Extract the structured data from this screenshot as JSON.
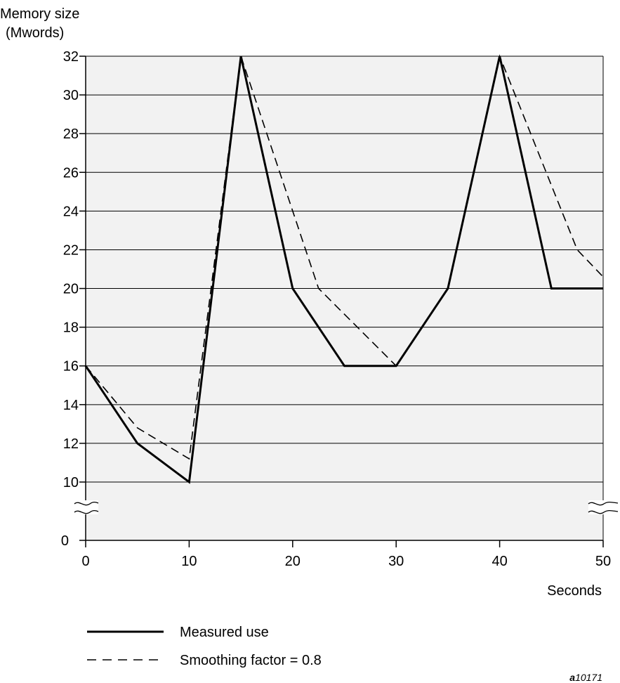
{
  "chart_data": {
    "type": "line",
    "ylabel_line1": "Memory size",
    "ylabel_line2": "(Mwords)",
    "xlabel": "Seconds",
    "x_ticks": [
      0,
      10,
      20,
      30,
      40,
      50
    ],
    "y_ticks": [
      10,
      12,
      14,
      16,
      18,
      20,
      22,
      24,
      26,
      28,
      30,
      32
    ],
    "y_zero_tick": 0,
    "y_axis_break": true,
    "xlim": [
      0,
      50
    ],
    "ylim": [
      10,
      32
    ],
    "grid": "horizontal",
    "series": [
      {
        "name": "Measured use",
        "style": "solid",
        "x": [
          0,
          5,
          10,
          15,
          20,
          25,
          30,
          35,
          40,
          45,
          50
        ],
        "y": [
          16,
          12,
          10,
          32,
          20,
          16,
          16,
          20,
          32,
          20,
          20
        ]
      },
      {
        "name": "Smoothing factor = 0.8",
        "style": "dashed",
        "x": [
          0,
          5,
          10,
          15,
          22.5,
          30,
          35,
          40,
          47.5,
          50
        ],
        "y": [
          16,
          12.8,
          11.2,
          32,
          20,
          16,
          20,
          32,
          22,
          20.6
        ]
      }
    ]
  },
  "figure_id_prefix": "a",
  "figure_id_number": "10171",
  "colors": {
    "plot_background": "#f2f2f2",
    "line": "#000000",
    "grid": "#000000"
  }
}
